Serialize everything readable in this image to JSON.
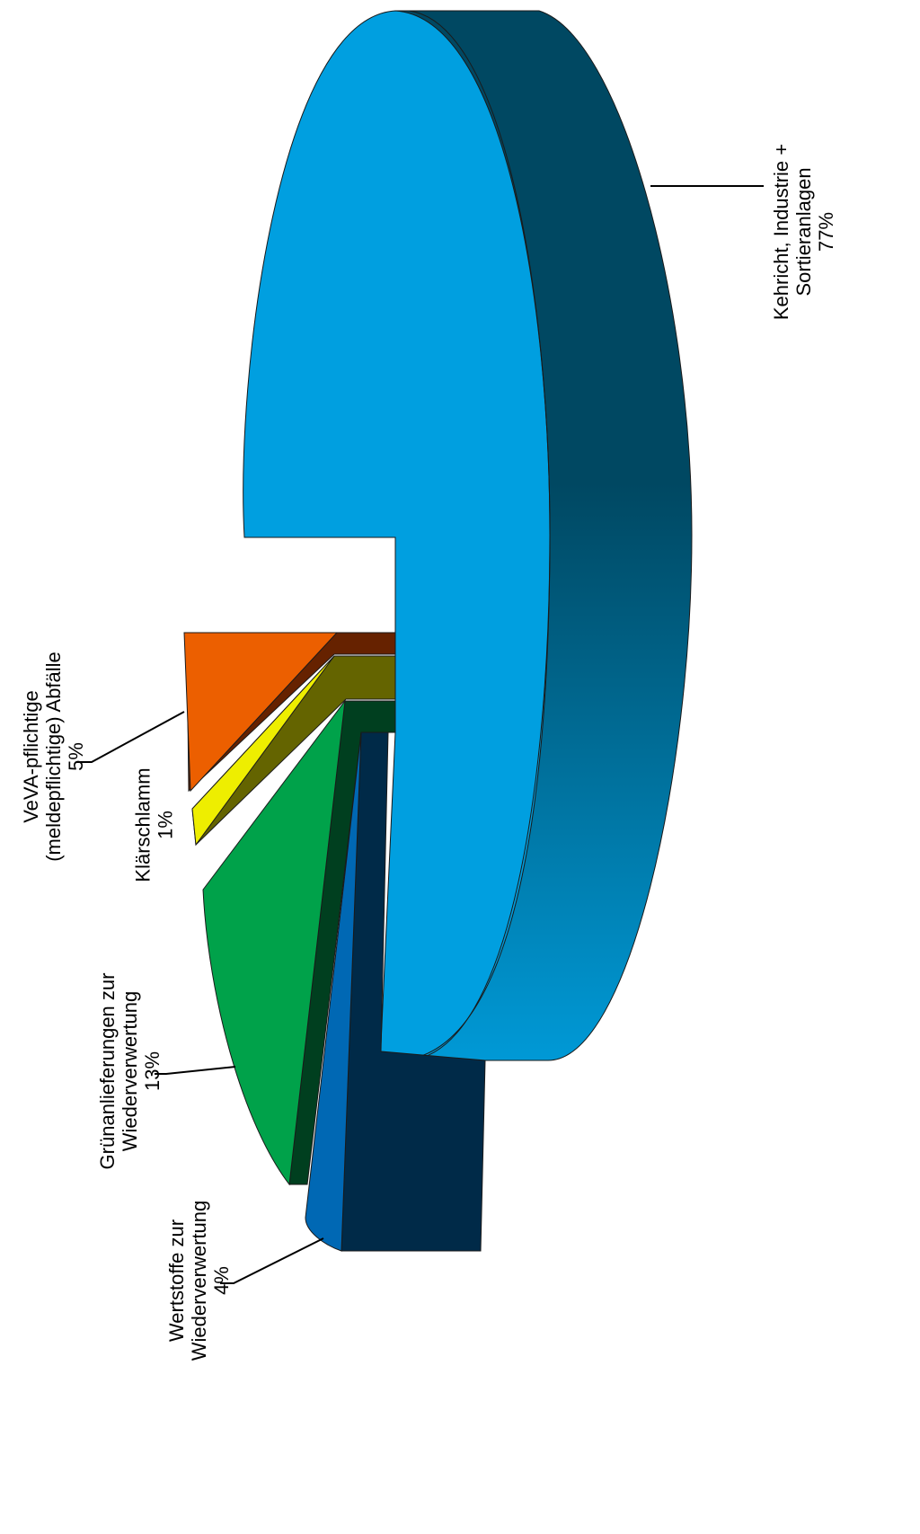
{
  "chart_data": {
    "type": "pie",
    "title": "",
    "variant": "3d-exploded",
    "rotated": true,
    "slices": [
      {
        "label_lines": [
          "Kehricht, Industrie +",
          "Sortieranlagen",
          "77%"
        ],
        "value": 77,
        "top_color": "#009fe0",
        "side_dark": "#004862",
        "side_light": "#0099d6"
      },
      {
        "label_lines": [
          "VeVA-pflichtige",
          "(meldepflichtige) Abfälle",
          "5%"
        ],
        "value": 5,
        "top_color": "#ec5f00",
        "side_dark": "#662200",
        "side_light": "#662200"
      },
      {
        "label_lines": [
          "Klärschlamm",
          "1%"
        ],
        "value": 1,
        "top_color": "#eeee00",
        "side_dark": "#646400",
        "side_light": "#646400"
      },
      {
        "label_lines": [
          "Grünanlieferungen  zur",
          "Wiederverwertung",
          "13%"
        ],
        "value": 13,
        "top_color": "#00a24a",
        "side_dark": "#003f1f",
        "side_light": "#003f1f"
      },
      {
        "label_lines": [
          "Wertstoffe zur",
          "Wiederverwertung",
          "4%"
        ],
        "value": 4,
        "top_color": "#0068b4",
        "side_dark": "#002a48",
        "side_light": "#002a48"
      }
    ]
  }
}
